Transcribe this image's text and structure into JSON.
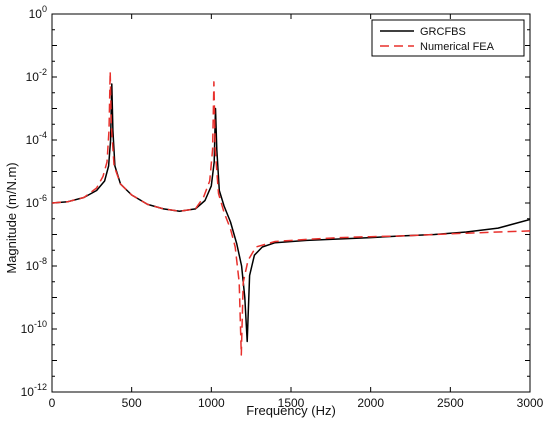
{
  "chart_data": {
    "type": "line",
    "title": "",
    "xlabel": "Frequency (Hz)",
    "ylabel": "Magnitude (m/N.m)",
    "x_scale": "linear",
    "y_scale": "log",
    "xlim": [
      0,
      3000
    ],
    "ylim": [
      1e-12,
      1
    ],
    "x_ticks": [
      {
        "value": 0,
        "label": "0"
      },
      {
        "value": 500,
        "label": "500"
      },
      {
        "value": 1000,
        "label": "1000"
      },
      {
        "value": 1500,
        "label": "1500"
      },
      {
        "value": 2000,
        "label": "2000"
      },
      {
        "value": 2500,
        "label": "2500"
      },
      {
        "value": 3000,
        "label": "3000"
      }
    ],
    "y_ticks": [
      {
        "exp": 0,
        "base": "10",
        "sup": "0"
      },
      {
        "exp": -2,
        "base": "10",
        "sup": "-2"
      },
      {
        "exp": -4,
        "base": "10",
        "sup": "-4"
      },
      {
        "exp": -6,
        "base": "10",
        "sup": "-6"
      },
      {
        "exp": -8,
        "base": "10",
        "sup": "-8"
      },
      {
        "exp": -10,
        "base": "10",
        "sup": "-10"
      },
      {
        "exp": -12,
        "base": "10",
        "sup": "-12"
      }
    ],
    "grid": false,
    "legend_position": "top-right",
    "series": [
      {
        "name": "GRCFBS",
        "color": "#000000",
        "dash": "solid",
        "points": [
          [
            0,
            1e-06
          ],
          [
            100,
            1.1e-06
          ],
          [
            200,
            1.5e-06
          ],
          [
            280,
            2.5e-06
          ],
          [
            330,
            5e-06
          ],
          [
            355,
            1.5e-05
          ],
          [
            368,
            0.0001
          ],
          [
            375,
            0.006
          ],
          [
            382,
            0.0002
          ],
          [
            395,
            1.5e-05
          ],
          [
            430,
            4e-06
          ],
          [
            500,
            1.8e-06
          ],
          [
            600,
            9e-07
          ],
          [
            700,
            6.5e-07
          ],
          [
            800,
            5.5e-07
          ],
          [
            900,
            6.5e-07
          ],
          [
            960,
            1.2e-06
          ],
          [
            1000,
            3.5e-06
          ],
          [
            1018,
            2e-05
          ],
          [
            1026,
            0.001
          ],
          [
            1034,
            5e-05
          ],
          [
            1050,
            2.5e-06
          ],
          [
            1080,
            8e-07
          ],
          [
            1120,
            2.5e-07
          ],
          [
            1160,
            5e-08
          ],
          [
            1190,
            1e-08
          ],
          [
            1210,
            1e-09
          ],
          [
            1225,
            4e-11
          ],
          [
            1240,
            5e-09
          ],
          [
            1270,
            2.2e-08
          ],
          [
            1320,
            4e-08
          ],
          [
            1400,
            5.5e-08
          ],
          [
            1600,
            6.5e-08
          ],
          [
            1800,
            7.2e-08
          ],
          [
            2000,
            8e-08
          ],
          [
            2200,
            9e-08
          ],
          [
            2400,
            1e-07
          ],
          [
            2600,
            1.2e-07
          ],
          [
            2800,
            1.6e-07
          ],
          [
            3000,
            3e-07
          ]
        ]
      },
      {
        "name": "Numerical FEA",
        "color": "#e8302c",
        "dash": "dashed",
        "points": [
          [
            0,
            1e-06
          ],
          [
            100,
            1.1e-06
          ],
          [
            200,
            1.5e-06
          ],
          [
            280,
            3e-06
          ],
          [
            320,
            7e-06
          ],
          [
            345,
            2e-05
          ],
          [
            358,
            0.0002
          ],
          [
            365,
            0.015
          ],
          [
            372,
            0.0003
          ],
          [
            390,
            1.5e-05
          ],
          [
            430,
            4e-06
          ],
          [
            500,
            1.8e-06
          ],
          [
            600,
            9e-07
          ],
          [
            700,
            6.5e-07
          ],
          [
            800,
            5.5e-07
          ],
          [
            900,
            6.5e-07
          ],
          [
            950,
            1.5e-06
          ],
          [
            990,
            5e-06
          ],
          [
            1008,
            5e-05
          ],
          [
            1016,
            0.007
          ],
          [
            1024,
            5e-05
          ],
          [
            1045,
            2e-06
          ],
          [
            1080,
            5e-07
          ],
          [
            1120,
            1.5e-07
          ],
          [
            1150,
            4e-08
          ],
          [
            1175,
            3e-09
          ],
          [
            1188,
            1.5e-11
          ],
          [
            1200,
            3e-09
          ],
          [
            1230,
            1.5e-08
          ],
          [
            1280,
            4e-08
          ],
          [
            1400,
            6e-08
          ],
          [
            1600,
            7e-08
          ],
          [
            1800,
            8e-08
          ],
          [
            2000,
            8.5e-08
          ],
          [
            2200,
            9e-08
          ],
          [
            2400,
            1e-07
          ],
          [
            2600,
            1.1e-07
          ],
          [
            2800,
            1.2e-07
          ],
          [
            3000,
            1.3e-07
          ]
        ]
      }
    ]
  }
}
